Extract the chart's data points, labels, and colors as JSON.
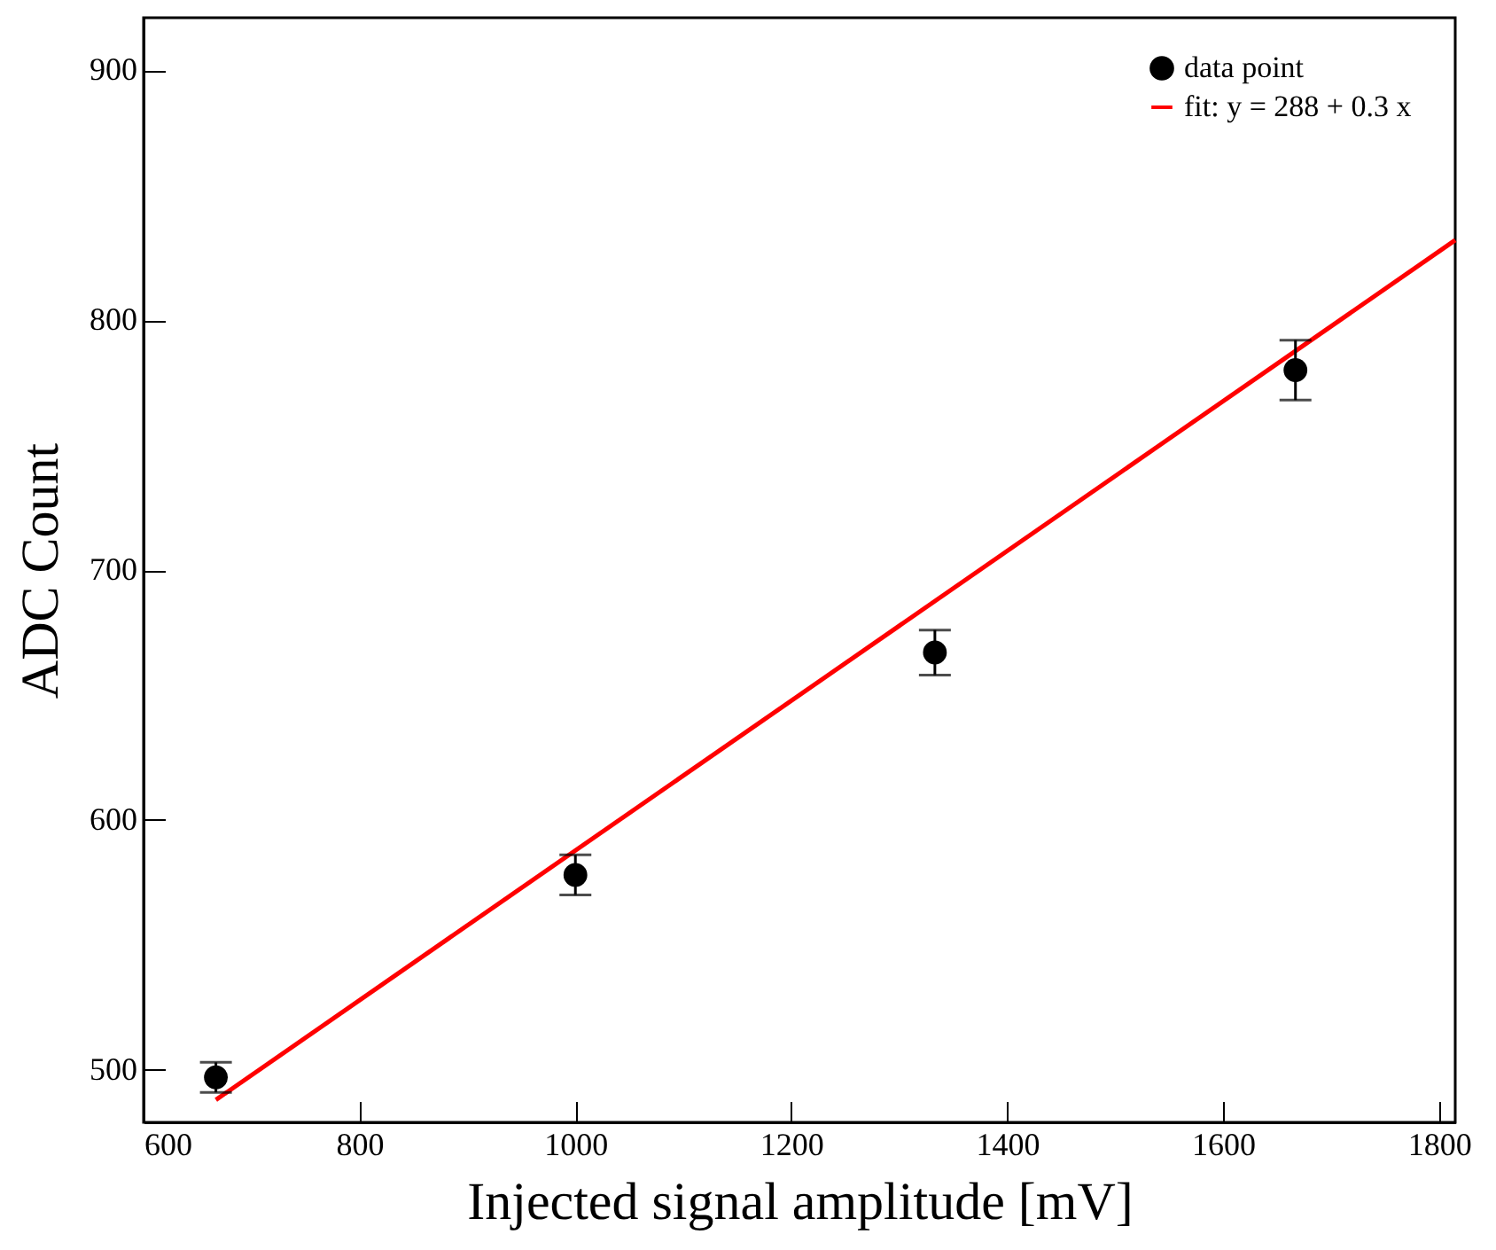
{
  "chart_data": {
    "type": "scatter",
    "xlabel": "Injected signal amplitude [mV]",
    "ylabel": "ADC Count",
    "x": [
      667,
      1000,
      1333,
      1667
    ],
    "series": [
      {
        "name": "data point",
        "color": "#000000",
        "marker": "circle",
        "values": [
          497,
          578,
          667,
          780
        ],
        "errors": [
          6,
          8,
          9,
          12
        ]
      },
      {
        "name": "fit: y = 288 +  0.3 x",
        "type": "line",
        "color": "#ff0000",
        "x": [
          667,
          1815
        ],
        "values": [
          488,
          832
        ]
      }
    ],
    "xlim": [
      600,
      1815
    ],
    "xticks": [
      600,
      800,
      1000,
      1200,
      1400,
      1600,
      1800
    ],
    "ylim": [
      479,
      921
    ],
    "yticks": [
      500,
      600,
      700,
      800,
      900
    ],
    "legend": "top right",
    "grid": false
  }
}
